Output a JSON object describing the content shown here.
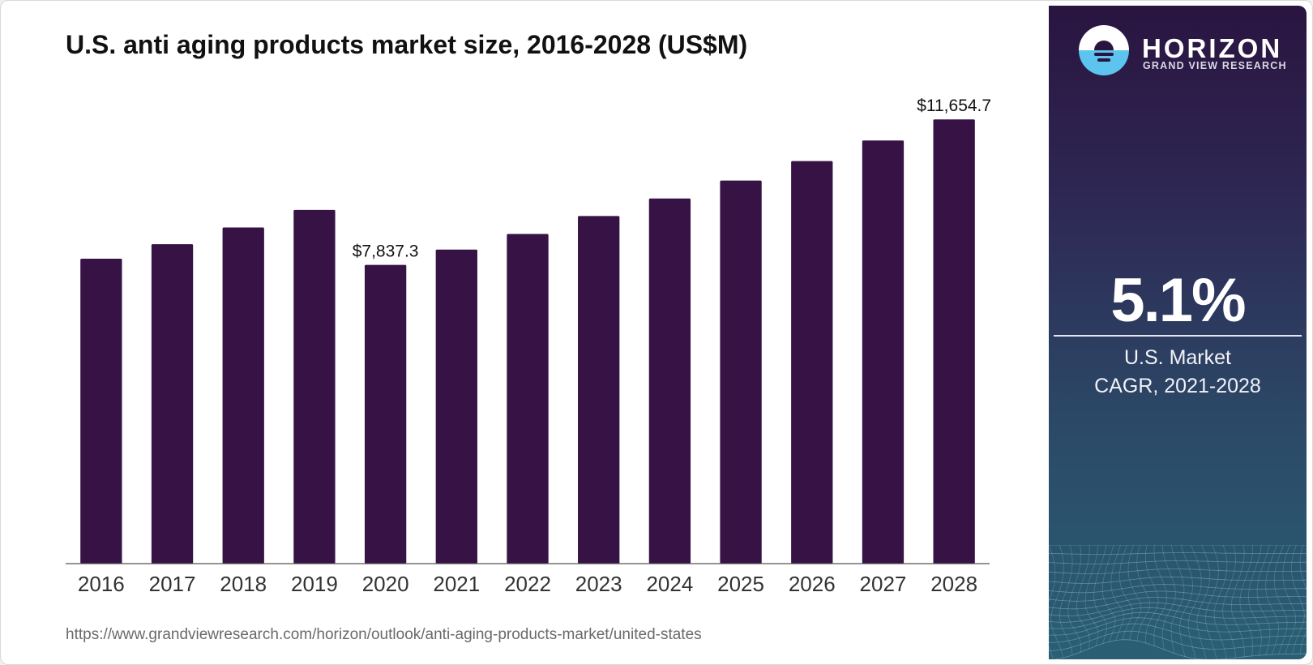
{
  "chart_data": {
    "type": "bar",
    "title": "U.S. anti aging products market size, 2016-2028 (US$M)",
    "xlabel": "",
    "ylabel": "",
    "categories": [
      "2016",
      "2017",
      "2018",
      "2019",
      "2020",
      "2021",
      "2022",
      "2023",
      "2024",
      "2025",
      "2026",
      "2027",
      "2028"
    ],
    "values": [
      8000,
      8380,
      8820,
      9280,
      7837.3,
      8240,
      8650,
      9120,
      9580,
      10050,
      10560,
      11100,
      11654.7
    ],
    "data_labels": [
      {
        "category": "2020",
        "text": "$7,837.3"
      },
      {
        "category": "2028",
        "text": "$11,654.7"
      }
    ],
    "ylim": [
      0,
      12000
    ],
    "bar_color": "#361245",
    "grid": false,
    "legend": "none"
  },
  "source": "https://www.grandviewresearch.com/horizon/outlook/anti-aging-products-market/united-states",
  "brand": {
    "name": "HORIZON",
    "subtitle": "GRAND VIEW RESEARCH",
    "logo_icon": "sunset-circle-icon"
  },
  "highlight": {
    "value": "5.1%",
    "label_line1": "U.S. Market",
    "label_line2": "CAGR, 2021-2028"
  },
  "colors": {
    "bar": "#361245",
    "panel_top": "#2a1440",
    "panel_bottom": "#2a5f74",
    "logo_sky": "#5cc4ee"
  }
}
